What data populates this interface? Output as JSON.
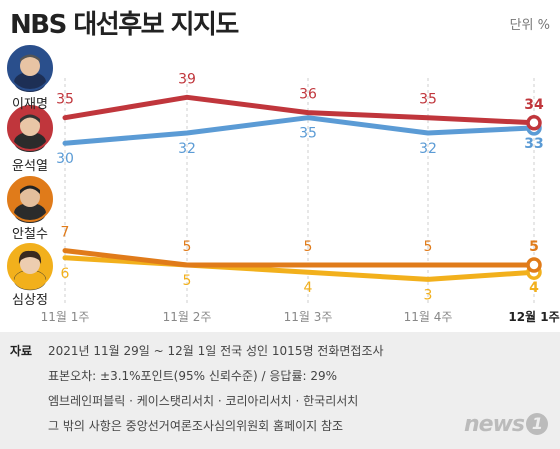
{
  "title": "NBS 대선후보 지지도",
  "unit": "단위 %",
  "chart_data": {
    "type": "line",
    "categories": [
      "11월 1주",
      "11월 2주",
      "11월 3주",
      "11월 4주",
      "12월 1주"
    ],
    "series": [
      {
        "name": "이재명",
        "values": [
          35,
          39,
          36,
          35,
          34
        ],
        "color": "#c0363c"
      },
      {
        "name": "윤석열",
        "values": [
          30,
          32,
          35,
          32,
          33
        ],
        "color": "#5b9bd5"
      },
      {
        "name": "안철수",
        "values": [
          7,
          5,
          5,
          5,
          5
        ],
        "color": "#e07b1a"
      },
      {
        "name": "심상정",
        "values": [
          6,
          5,
          4,
          3,
          4
        ],
        "color": "#f2b01c"
      }
    ],
    "grid": true
  },
  "footer": {
    "label": "자료",
    "line1": "2021년 11월 29일 ~ 12월 1일 전국 성인 1015명 전화면접조사",
    "line2": "표본오차: ±3.1%포인트(95% 신뢰수준) / 응답률: 29%",
    "line3": "엠브레인퍼블릭 · 케이스탯리서치 · 코리아리서치 · 한국리서치",
    "line4": "그 밖의 사항은 중앙선거여론조사심의위원회 홈페이지 참조"
  },
  "logo": {
    "text": "news",
    "mark": "1"
  }
}
